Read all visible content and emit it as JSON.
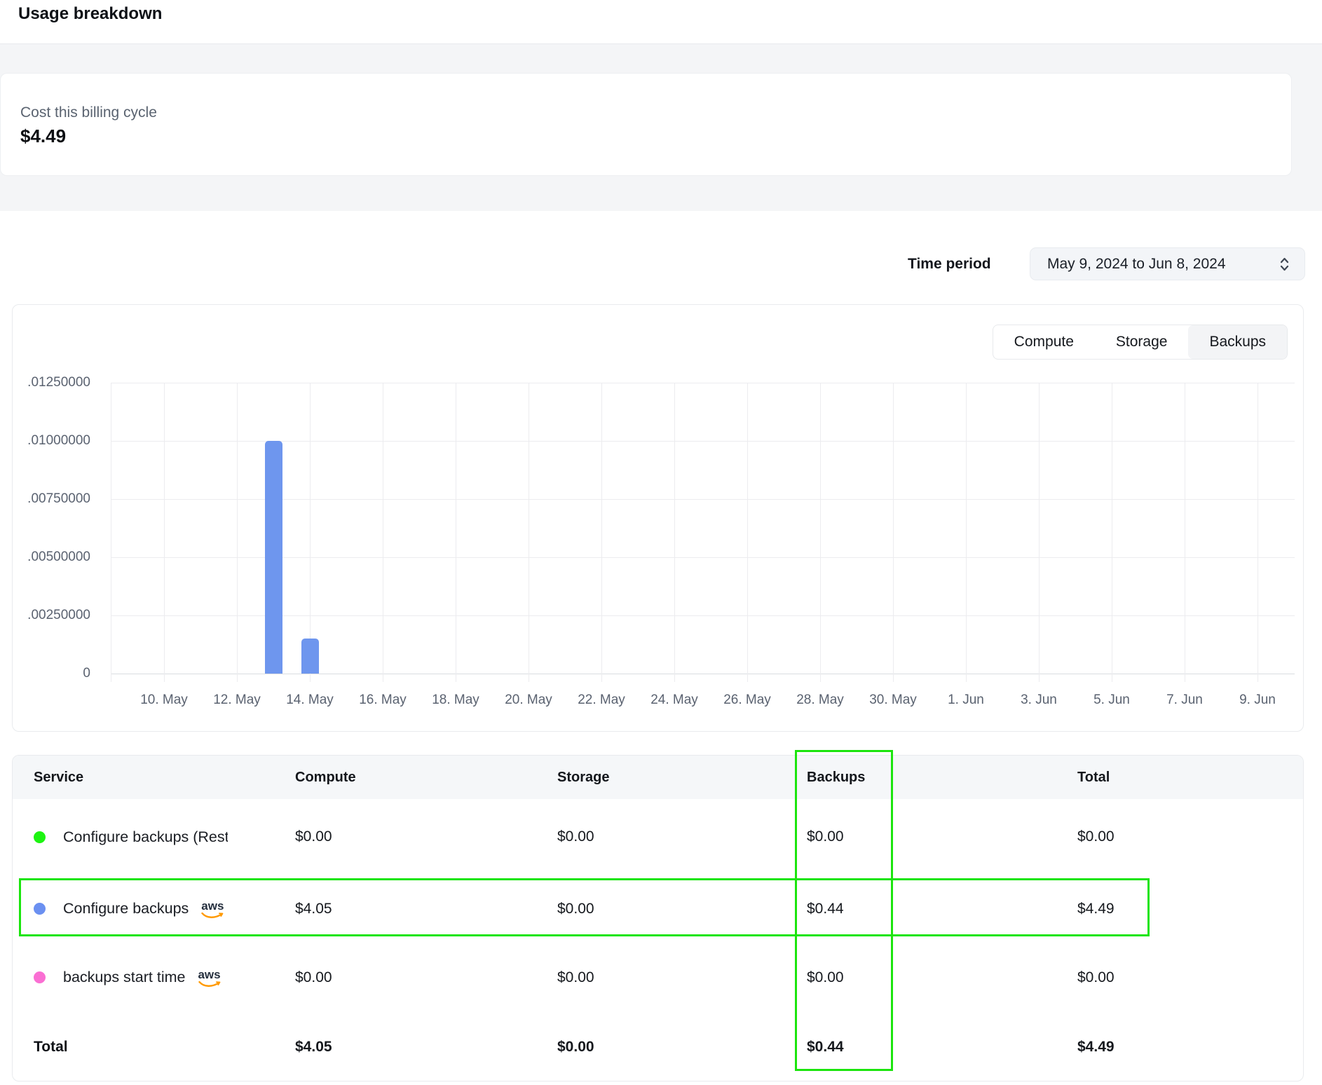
{
  "page": {
    "title": "Usage breakdown"
  },
  "cost_card": {
    "label": "Cost this billing cycle",
    "value": "$4.49"
  },
  "time_period": {
    "label": "Time period",
    "value": "May 9, 2024 to Jun 8, 2024"
  },
  "chart": {
    "tabs": [
      {
        "label": "Compute",
        "selected": false
      },
      {
        "label": "Storage",
        "selected": false
      },
      {
        "label": "Backups",
        "selected": true
      }
    ]
  },
  "chart_data": {
    "type": "bar",
    "title": "",
    "xlabel": "",
    "ylabel": "",
    "selected_series": "Backups",
    "ylim": [
      0,
      0.0125
    ],
    "grid": true,
    "legend": "none",
    "bar_color": "#6e96ee",
    "y_ticks": [
      {
        "value": 0.0125,
        "label": ".01250000"
      },
      {
        "value": 0.01,
        "label": ".01000000"
      },
      {
        "value": 0.0075,
        "label": ".00750000"
      },
      {
        "value": 0.005,
        "label": ".00500000"
      },
      {
        "value": 0.0025,
        "label": ".00250000"
      },
      {
        "value": 0,
        "label": "0"
      }
    ],
    "x_ticks": [
      {
        "label": "10. May",
        "day_index": 0
      },
      {
        "label": "12. May",
        "day_index": 2
      },
      {
        "label": "14. May",
        "day_index": 4
      },
      {
        "label": "16. May",
        "day_index": 6
      },
      {
        "label": "18. May",
        "day_index": 8
      },
      {
        "label": "20. May",
        "day_index": 10
      },
      {
        "label": "22. May",
        "day_index": 12
      },
      {
        "label": "24. May",
        "day_index": 14
      },
      {
        "label": "26. May",
        "day_index": 16
      },
      {
        "label": "28. May",
        "day_index": 18
      },
      {
        "label": "30. May",
        "day_index": 20
      },
      {
        "label": "1. Jun",
        "day_index": 22
      },
      {
        "label": "3. Jun",
        "day_index": 24
      },
      {
        "label": "5. Jun",
        "day_index": 26
      },
      {
        "label": "7. Jun",
        "day_index": 28
      },
      {
        "label": "9. Jun",
        "day_index": 30
      }
    ],
    "bars": [
      {
        "x_label": "13. May",
        "day_index": 3,
        "value": 0.01
      },
      {
        "x_label": "14. May",
        "day_index": 4,
        "value": 0.0015
      }
    ]
  },
  "table": {
    "columns": [
      "Service",
      "Compute",
      "Storage",
      "Backups",
      "Total"
    ],
    "aws_label": "aws",
    "rows": [
      {
        "service": "Configure backups (Resto",
        "dot_color": "#1df411",
        "aws_badge": false,
        "highlighted": false,
        "values": [
          "$0.00",
          "$0.00",
          "$0.00",
          "$0.00"
        ]
      },
      {
        "service": "Configure backups",
        "dot_color": "#6b90f1",
        "aws_badge": true,
        "highlighted": true,
        "values": [
          "$4.05",
          "$0.00",
          "$0.44",
          "$4.49"
        ]
      },
      {
        "service": "backups start time",
        "dot_color": "#fa6fd3",
        "aws_badge": true,
        "highlighted": false,
        "values": [
          "$0.00",
          "$0.00",
          "$0.00",
          "$0.00"
        ]
      }
    ],
    "total_row": {
      "label": "Total",
      "values": [
        "$4.05",
        "$0.00",
        "$0.44",
        "$4.49"
      ]
    }
  },
  "annotations": {
    "color": "#1ce50e",
    "boxes": [
      "backups-column-highlight",
      "configure-backups-row-highlight"
    ]
  },
  "colors": {
    "bar_blue": "#6e96ee",
    "dot_green": "#1df411",
    "dot_blue": "#6b90f1",
    "dot_pink": "#fa6fd3",
    "aws_orange": "#ff9900",
    "annotation_green": "#1ce50e"
  }
}
